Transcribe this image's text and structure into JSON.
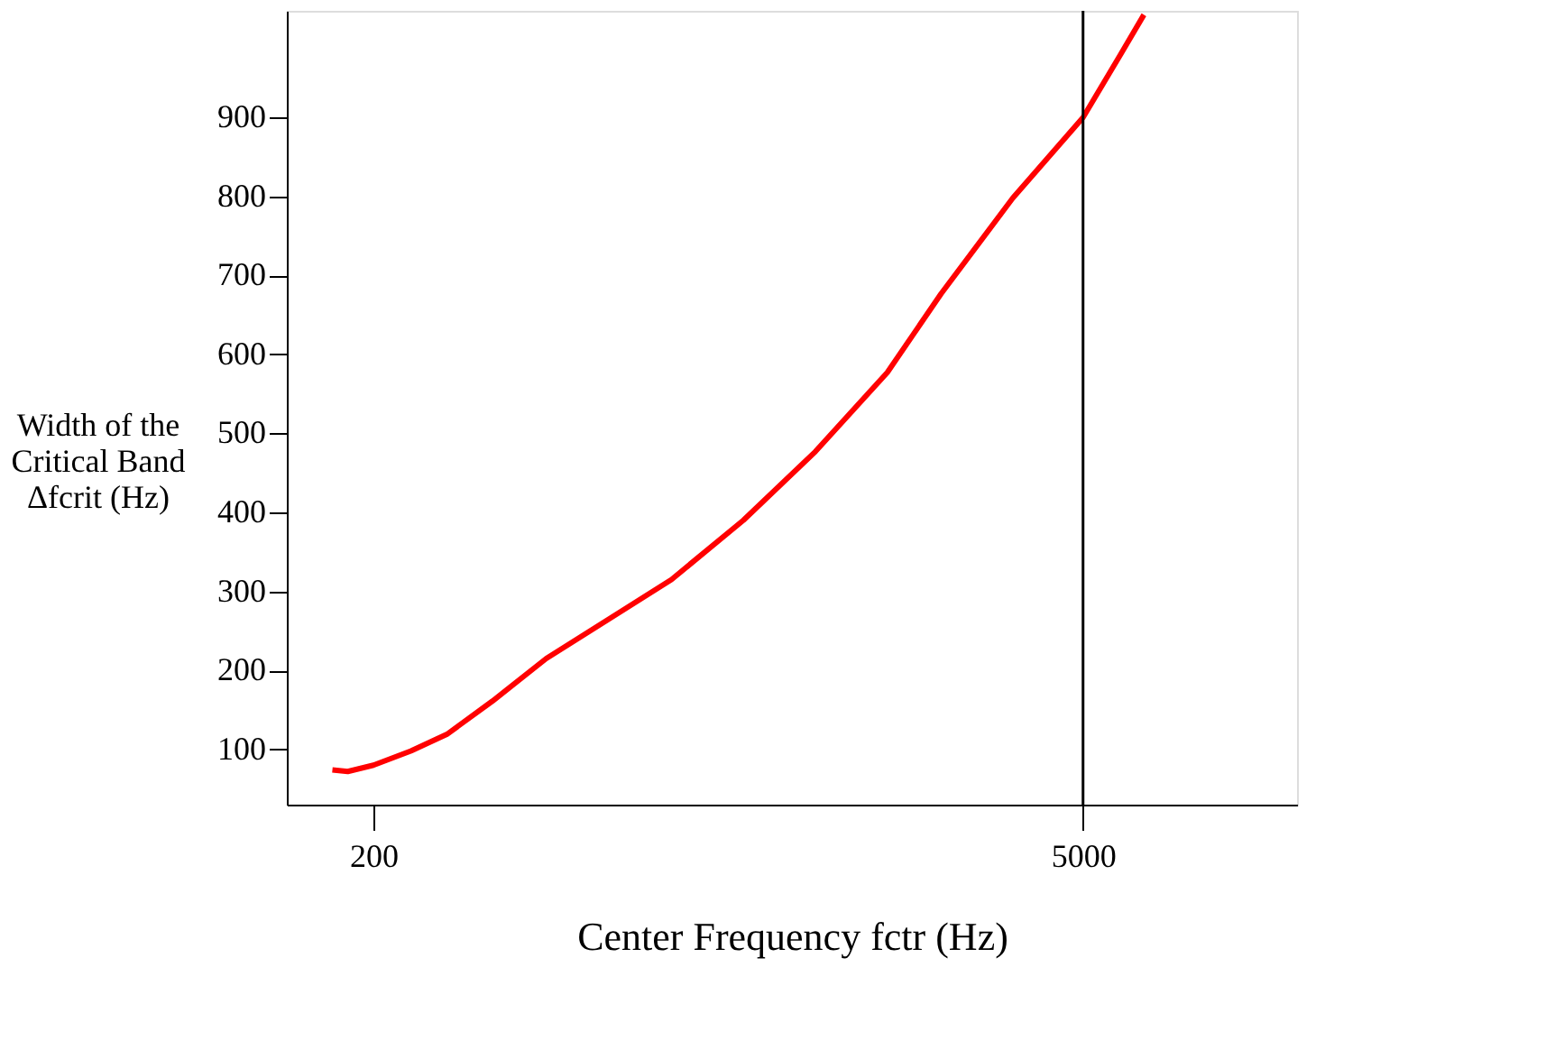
{
  "chart_data": {
    "type": "line",
    "xlabel": "Center Frequency  fctr (Hz)",
    "ylabel": "Width of the\nCritical Band\nΔfcrit (Hz)",
    "x": [
      166,
      178,
      200,
      237,
      279,
      343,
      438,
      582,
      773,
      1071,
      1485,
      2057,
      2627,
      3636,
      5000,
      5930,
      6590
    ],
    "series": [
      {
        "color": "#ff0000",
        "values": [
          74,
          72,
          80,
          98,
          119,
          161,
          215,
          265,
          315,
          390,
          477,
          577,
          677,
          798,
          900,
          980,
          1030
        ]
      }
    ],
    "log": "x",
    "xlim": [
      135,
      13200
    ],
    "xticks": [
      200,
      5000
    ],
    "ylim": [
      30,
      1035
    ],
    "yticks": [
      100,
      200,
      300,
      400,
      500,
      600,
      700,
      800,
      900
    ],
    "ref_lines": [
      {
        "axis": "x",
        "value": 5000,
        "color": "#000000"
      }
    ],
    "grid": false,
    "line_style": "solid",
    "marker": "none"
  }
}
